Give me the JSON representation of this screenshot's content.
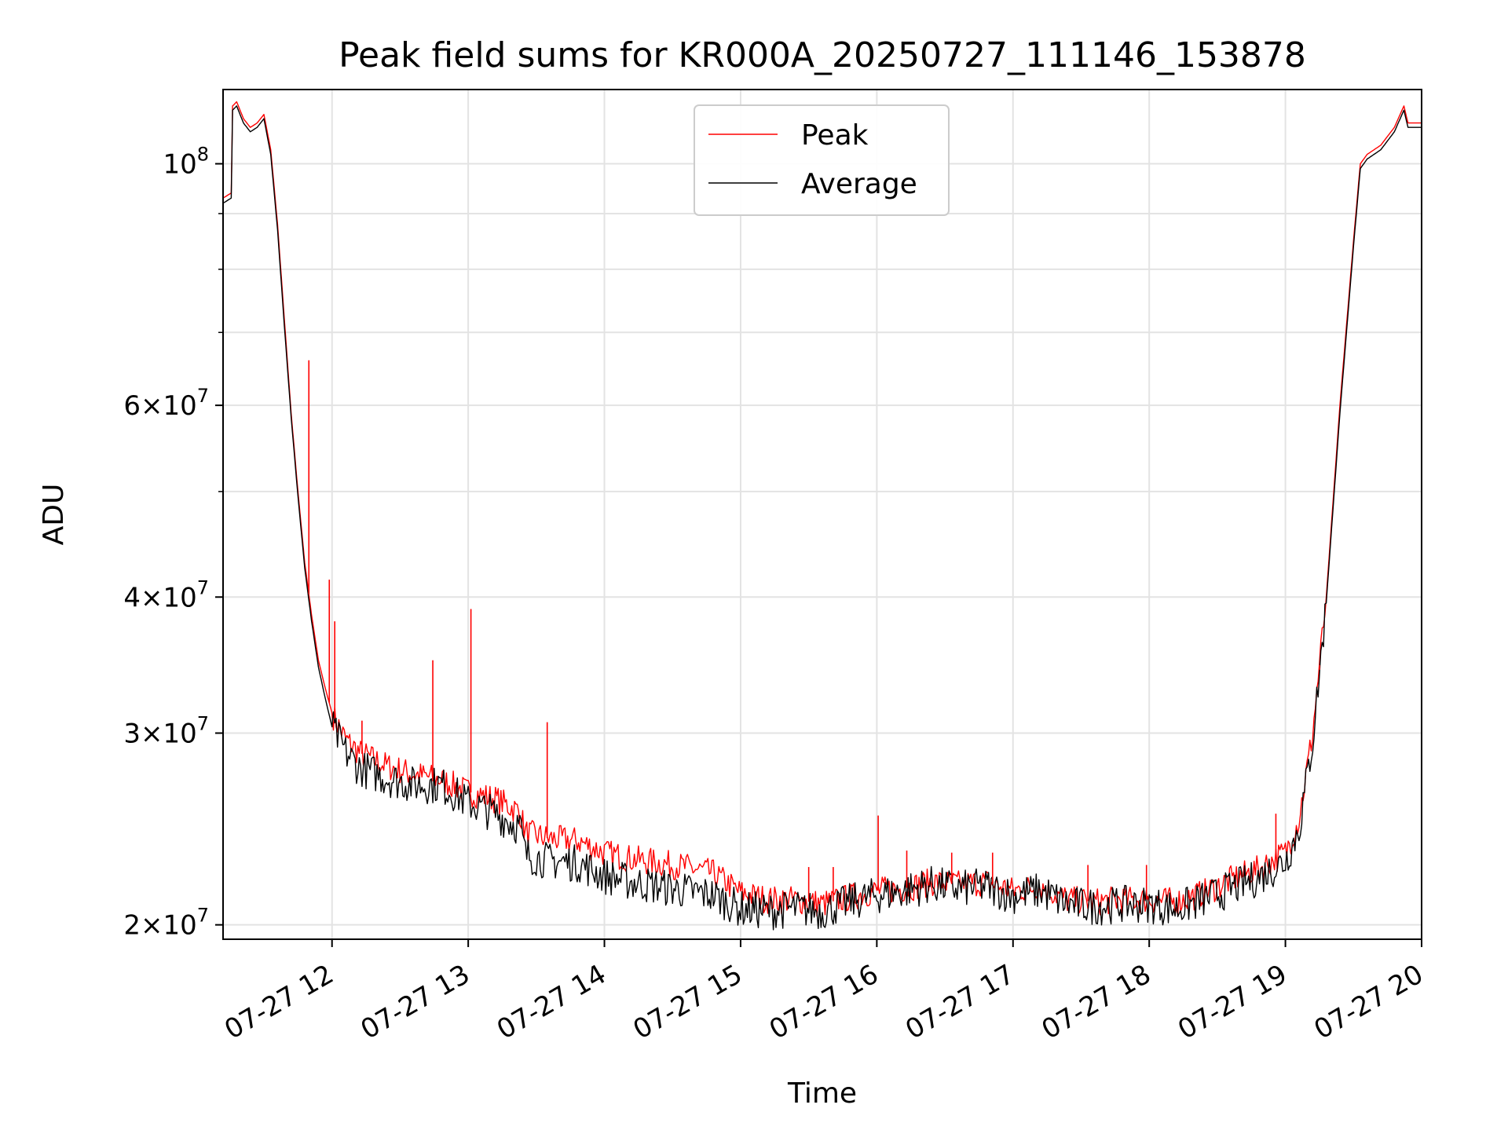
{
  "chart_data": {
    "type": "line",
    "title": "Peak field sums for KR000A_20250727_111146_153878",
    "xlabel": "Time",
    "ylabel": "ADU",
    "x_unit": "hours (2025-07-27, local clock)",
    "xlim": [
      11.2,
      20.0
    ],
    "ylim": [
      19400000,
      117000000
    ],
    "yscale": "log",
    "grid": true,
    "legend_position": "upper-center",
    "x_ticks": [
      {
        "value": 12,
        "label": "07-27 12"
      },
      {
        "value": 13,
        "label": "07-27 13"
      },
      {
        "value": 14,
        "label": "07-27 14"
      },
      {
        "value": 15,
        "label": "07-27 15"
      },
      {
        "value": 16,
        "label": "07-27 16"
      },
      {
        "value": 17,
        "label": "07-27 17"
      },
      {
        "value": 18,
        "label": "07-27 18"
      },
      {
        "value": 19,
        "label": "07-27 19"
      },
      {
        "value": 20,
        "label": "07-27 20"
      }
    ],
    "y_major_ticks": [
      {
        "value": 20000000,
        "mantissa": "2",
        "base": "10",
        "exp": "7"
      },
      {
        "value": 30000000,
        "mantissa": "3",
        "base": "10",
        "exp": "7"
      },
      {
        "value": 40000000,
        "mantissa": "4",
        "base": "10",
        "exp": "7"
      },
      {
        "value": 60000000,
        "mantissa": "6",
        "base": "10",
        "exp": "7"
      },
      {
        "value": 100000000,
        "mantissa": "",
        "base": "10",
        "exp": "8"
      }
    ],
    "y_minor_ticks": [
      50000000,
      70000000,
      80000000,
      90000000
    ],
    "series": [
      {
        "name": "Peak",
        "color": "#ff0000",
        "points": [
          [
            11.2,
            93000000
          ],
          [
            11.26,
            94000000
          ],
          [
            11.27,
            113000000
          ],
          [
            11.3,
            114000000
          ],
          [
            11.35,
            110000000
          ],
          [
            11.4,
            108000000
          ],
          [
            11.45,
            109000000
          ],
          [
            11.5,
            111000000
          ],
          [
            11.55,
            103000000
          ],
          [
            11.6,
            88000000
          ],
          [
            11.65,
            72000000
          ],
          [
            11.7,
            59000000
          ],
          [
            11.75,
            50000000
          ],
          [
            11.8,
            43000000
          ],
          [
            11.85,
            38500000
          ],
          [
            11.9,
            35000000
          ],
          [
            11.95,
            33000000
          ],
          [
            12.0,
            31300000
          ],
          [
            12.1,
            29600000
          ],
          [
            12.2,
            28800000
          ],
          [
            12.4,
            28000000
          ],
          [
            12.6,
            27500000
          ],
          [
            12.8,
            27200000
          ],
          [
            13.0,
            26500000
          ],
          [
            13.2,
            26100000
          ],
          [
            13.38,
            25400000
          ],
          [
            13.42,
            24300000
          ],
          [
            13.6,
            24000000
          ],
          [
            13.8,
            23900000
          ],
          [
            14.0,
            23300000
          ],
          [
            14.2,
            23000000
          ],
          [
            14.4,
            22800000
          ],
          [
            14.6,
            22600000
          ],
          [
            14.8,
            22300000
          ],
          [
            15.0,
            21400000
          ],
          [
            15.2,
            21100000
          ],
          [
            15.4,
            21100000
          ],
          [
            15.6,
            20900000
          ],
          [
            15.8,
            21200000
          ],
          [
            16.0,
            21500000
          ],
          [
            16.2,
            21600000
          ],
          [
            16.4,
            21900000
          ],
          [
            16.6,
            21800000
          ],
          [
            16.8,
            21900000
          ],
          [
            17.0,
            21500000
          ],
          [
            17.2,
            21700000
          ],
          [
            17.4,
            21100000
          ],
          [
            17.6,
            21000000
          ],
          [
            17.8,
            21100000
          ],
          [
            18.0,
            21100000
          ],
          [
            18.2,
            21000000
          ],
          [
            18.4,
            21400000
          ],
          [
            18.6,
            22000000
          ],
          [
            18.8,
            22500000
          ],
          [
            19.0,
            23300000
          ],
          [
            19.1,
            25000000
          ],
          [
            19.2,
            30000000
          ],
          [
            19.3,
            40000000
          ],
          [
            19.4,
            60000000
          ],
          [
            19.5,
            85000000
          ],
          [
            19.55,
            100000000
          ],
          [
            19.6,
            102000000
          ],
          [
            19.7,
            104000000
          ],
          [
            19.8,
            108000000
          ],
          [
            19.87,
            113000000
          ],
          [
            19.9,
            109000000
          ],
          [
            20.0,
            109000000
          ]
        ]
      },
      {
        "name": "Average",
        "color": "#000000",
        "points": [
          [
            11.2,
            92000000
          ],
          [
            11.26,
            93000000
          ],
          [
            11.27,
            112000000
          ],
          [
            11.3,
            113000000
          ],
          [
            11.35,
            109000000
          ],
          [
            11.4,
            107000000
          ],
          [
            11.45,
            108000000
          ],
          [
            11.5,
            110000000
          ],
          [
            11.55,
            102000000
          ],
          [
            11.6,
            87000000
          ],
          [
            11.65,
            71000000
          ],
          [
            11.7,
            58500000
          ],
          [
            11.75,
            49500000
          ],
          [
            11.8,
            42500000
          ],
          [
            11.85,
            38000000
          ],
          [
            11.9,
            34500000
          ],
          [
            11.95,
            32300000
          ],
          [
            12.0,
            30400000
          ],
          [
            12.1,
            28800000
          ],
          [
            12.2,
            27900000
          ],
          [
            12.4,
            27300000
          ],
          [
            12.6,
            26900000
          ],
          [
            12.8,
            26900000
          ],
          [
            13.0,
            25900000
          ],
          [
            13.2,
            25300000
          ],
          [
            13.38,
            24600000
          ],
          [
            13.42,
            23200000
          ],
          [
            13.6,
            22900000
          ],
          [
            13.8,
            22800000
          ],
          [
            14.0,
            22200000
          ],
          [
            14.2,
            21900000
          ],
          [
            14.4,
            21700000
          ],
          [
            14.6,
            21500000
          ],
          [
            14.8,
            21300000
          ],
          [
            15.0,
            20700000
          ],
          [
            15.2,
            20600000
          ],
          [
            15.4,
            20700000
          ],
          [
            15.6,
            20600000
          ],
          [
            15.8,
            21000000
          ],
          [
            16.0,
            21300000
          ],
          [
            16.2,
            21500000
          ],
          [
            16.4,
            21800000
          ],
          [
            16.6,
            21600000
          ],
          [
            16.8,
            21700000
          ],
          [
            17.0,
            21300000
          ],
          [
            17.2,
            21500000
          ],
          [
            17.4,
            20900000
          ],
          [
            17.6,
            20800000
          ],
          [
            17.8,
            20900000
          ],
          [
            18.0,
            20900000
          ],
          [
            18.2,
            20700000
          ],
          [
            18.4,
            21100000
          ],
          [
            18.6,
            21600000
          ],
          [
            18.8,
            22100000
          ],
          [
            19.0,
            22900000
          ],
          [
            19.1,
            24500000
          ],
          [
            19.2,
            29500000
          ],
          [
            19.3,
            39500000
          ],
          [
            19.4,
            59000000
          ],
          [
            19.5,
            84000000
          ],
          [
            19.55,
            99000000
          ],
          [
            19.6,
            101000000
          ],
          [
            19.7,
            103000000
          ],
          [
            19.8,
            107000000
          ],
          [
            19.87,
            112000000
          ],
          [
            19.9,
            108000000
          ],
          [
            20.0,
            108000000
          ]
        ]
      }
    ],
    "spikes": [
      {
        "series": "Peak",
        "x": 11.83,
        "y": 66000000
      },
      {
        "series": "Peak",
        "x": 11.98,
        "y": 41500000
      },
      {
        "series": "Peak",
        "x": 12.02,
        "y": 38000000
      },
      {
        "series": "Peak",
        "x": 12.22,
        "y": 30800000
      },
      {
        "series": "Peak",
        "x": 12.74,
        "y": 35000000
      },
      {
        "series": "Peak",
        "x": 13.02,
        "y": 39000000
      },
      {
        "series": "Peak",
        "x": 13.58,
        "y": 30700000
      },
      {
        "series": "Peak",
        "x": 15.5,
        "y": 22600000
      },
      {
        "series": "Peak",
        "x": 15.68,
        "y": 22600000
      },
      {
        "series": "Peak",
        "x": 16.01,
        "y": 25200000
      },
      {
        "series": "Peak",
        "x": 16.22,
        "y": 23400000
      },
      {
        "series": "Peak",
        "x": 16.55,
        "y": 23300000
      },
      {
        "series": "Peak",
        "x": 16.85,
        "y": 23300000
      },
      {
        "series": "Peak",
        "x": 17.55,
        "y": 22700000
      },
      {
        "series": "Peak",
        "x": 17.98,
        "y": 22700000
      },
      {
        "series": "Peak",
        "x": 18.93,
        "y": 25300000
      },
      {
        "series": "Peak",
        "x": 19.25,
        "y": 34300000
      }
    ]
  }
}
